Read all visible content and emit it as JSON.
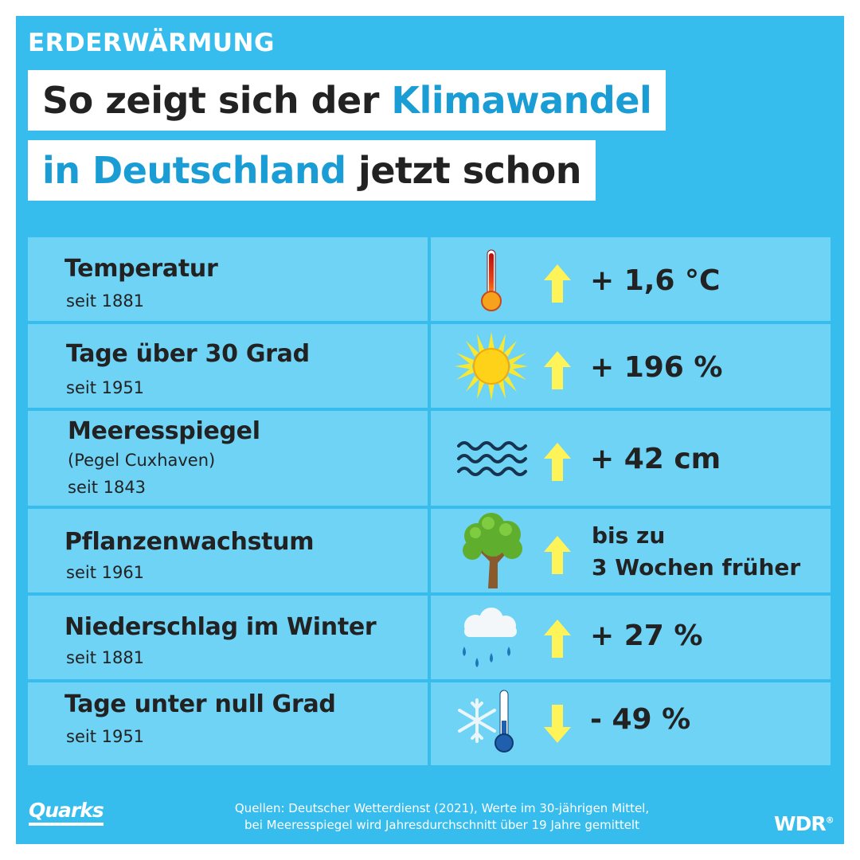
{
  "header": {
    "topic": "ERDERWÄRMUNG",
    "title_line1_plain": "So zeigt sich der ",
    "title_line1_highlight": "Klimawandel",
    "title_line2_highlight": "in Deutschland",
    "title_line2_plain": " jetzt schon"
  },
  "rows": [
    {
      "label": "Temperatur",
      "sub": "seit 1881",
      "icon": "thermometer-hot-icon",
      "trend": "up",
      "value": "+ 1,6 °C"
    },
    {
      "label": "Tage über 30 Grad",
      "sub": "seit 1951",
      "icon": "sun-icon",
      "trend": "up",
      "value": "+ 196 %"
    },
    {
      "label": "Meeresspiegel",
      "sub2": "(Pegel Cuxhaven)",
      "sub": "seit 1843",
      "icon": "waves-icon",
      "trend": "up",
      "value": "+ 42 cm"
    },
    {
      "label": "Pflanzenwachstum",
      "sub": "seit 1961",
      "icon": "tree-icon",
      "trend": "up",
      "value_line1": "bis zu",
      "value_line2": "3 Wochen früher"
    },
    {
      "label": "Niederschlag im Winter",
      "sub": "seit 1881",
      "icon": "rain-cloud-icon",
      "trend": "up",
      "value": "+ 27 %"
    },
    {
      "label": "Tage unter null Grad",
      "sub": "seit 1951",
      "icon": "snowflake-thermometer-icon",
      "trend": "down",
      "value": "- 49 %"
    }
  ],
  "footer": {
    "brand": "Quarks",
    "sources_line1": "Quellen: Deutscher Wetterdienst (2021), Werte im 30-jährigen Mittel,",
    "sources_line2": "bei Meeresspiegel wird Jahresdurchschnitt über 19 Jahre gemittelt",
    "broadcaster": "WDR"
  },
  "colors": {
    "background": "#36bdee",
    "cell": "#6fd3f6",
    "highlight_text": "#1a9cd4",
    "arrow": "#fff35a"
  }
}
